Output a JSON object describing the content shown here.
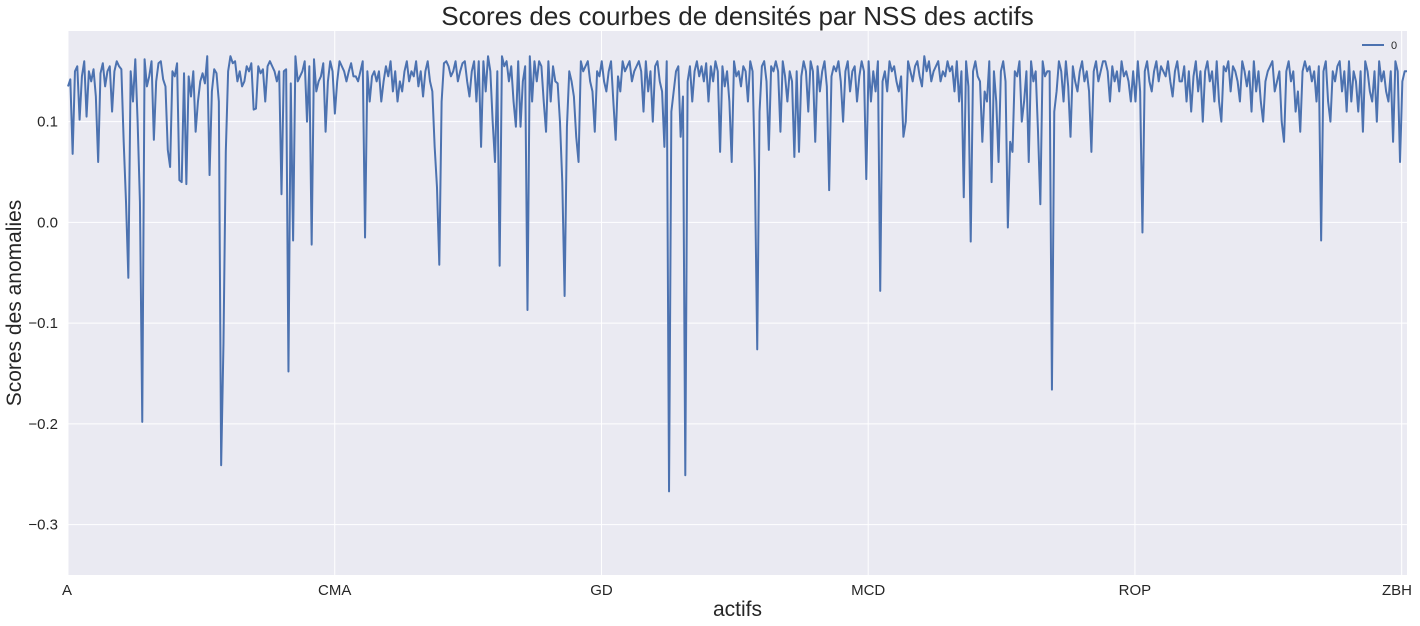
{
  "chart_data": {
    "type": "line",
    "title": "Scores des courbes de densités par NSS des actifs",
    "xlabel": "actifs",
    "ylabel": "Scores des anomalies",
    "x_tick_labels": [
      "A",
      "CMA",
      "GD",
      "MCD",
      "ROP",
      "ZBH"
    ],
    "x_tick_index": [
      0,
      100,
      200,
      300,
      400,
      500
    ],
    "xlim": [
      0,
      502
    ],
    "ylim": [
      -0.35,
      0.19
    ],
    "y_ticks": [
      -0.3,
      -0.2,
      -0.1,
      0.0,
      0.1
    ],
    "y_tick_labels": [
      "−0.3",
      "−0.2",
      "−0.1",
      "0.0",
      "0.1"
    ],
    "grid": true,
    "legend_position": "top-right",
    "colors": {
      "background": "#eaeaf2",
      "grid": "#ffffff",
      "line": "#4c72b0"
    },
    "series": [
      {
        "name": "0",
        "values": [
          0.135,
          0.142,
          0.068,
          0.15,
          0.155,
          0.102,
          0.145,
          0.16,
          0.105,
          0.15,
          0.14,
          0.152,
          0.125,
          0.06,
          0.148,
          0.158,
          0.135,
          0.15,
          0.155,
          0.11,
          0.15,
          0.16,
          0.155,
          0.152,
          0.08,
          0.02,
          -0.055,
          0.15,
          0.12,
          0.162,
          0.1,
          0.02,
          -0.198,
          0.162,
          0.135,
          0.145,
          0.16,
          0.082,
          0.14,
          0.158,
          0.16,
          0.142,
          0.135,
          0.072,
          0.055,
          0.15,
          0.145,
          0.158,
          0.042,
          0.04,
          0.148,
          0.038,
          0.145,
          0.125,
          0.15,
          0.09,
          0.12,
          0.14,
          0.148,
          0.138,
          0.165,
          0.047,
          0.13,
          0.152,
          0.148,
          0.12,
          -0.241,
          -0.12,
          0.07,
          0.15,
          0.165,
          0.158,
          0.16,
          0.14,
          0.15,
          0.135,
          0.14,
          0.155,
          0.15,
          0.158,
          0.112,
          0.113,
          0.155,
          0.148,
          0.152,
          0.12,
          0.155,
          0.16,
          0.155,
          0.15,
          0.14,
          0.15,
          0.028,
          0.15,
          0.152,
          -0.148,
          0.138,
          -0.018,
          0.165,
          0.14,
          0.145,
          0.15,
          0.16,
          0.1,
          0.155,
          -0.022,
          0.162,
          0.13,
          0.14,
          0.145,
          0.158,
          0.09,
          0.14,
          0.16,
          0.15,
          0.108,
          0.14,
          0.16,
          0.155,
          0.15,
          0.14,
          0.15,
          0.158,
          0.145,
          0.145,
          0.14,
          0.15,
          0.16,
          -0.015,
          0.15,
          0.12,
          0.145,
          0.15,
          0.14,
          0.15,
          0.12,
          0.14,
          0.155,
          0.145,
          0.16,
          0.13,
          0.15,
          0.12,
          0.14,
          0.13,
          0.15,
          0.16,
          0.14,
          0.15,
          0.145,
          0.16,
          0.135,
          0.15,
          0.125,
          0.15,
          0.16,
          0.14,
          0.13,
          0.075,
          0.035,
          -0.042,
          0.12,
          0.158,
          0.16,
          0.155,
          0.145,
          0.15,
          0.16,
          0.14,
          0.15,
          0.158,
          0.16,
          0.14,
          0.125,
          0.15,
          0.16,
          0.12,
          0.16,
          0.075,
          0.16,
          0.13,
          0.165,
          0.15,
          0.1,
          0.06,
          0.15,
          -0.043,
          0.165,
          0.155,
          0.16,
          0.14,
          0.155,
          0.12,
          0.095,
          0.16,
          0.095,
          0.14,
          0.155,
          -0.087,
          0.165,
          0.12,
          0.16,
          0.14,
          0.16,
          0.155,
          0.12,
          0.09,
          0.16,
          0.12,
          0.155,
          0.14,
          0.138,
          0.1,
          0.04,
          -0.073,
          0.095,
          0.15,
          0.14,
          0.125,
          0.085,
          0.06,
          0.16,
          0.15,
          0.155,
          0.16,
          0.14,
          0.13,
          0.09,
          0.15,
          0.145,
          0.16,
          0.14,
          0.13,
          0.15,
          0.16,
          0.12,
          0.082,
          0.145,
          0.13,
          0.16,
          0.15,
          0.155,
          0.16,
          0.14,
          0.15,
          0.155,
          0.16,
          0.15,
          0.11,
          0.16,
          0.13,
          0.15,
          0.1,
          0.155,
          0.16,
          0.14,
          0.13,
          0.075,
          0.16,
          -0.267,
          0.11,
          0.13,
          0.15,
          0.155,
          0.085,
          0.125,
          -0.251,
          0.14,
          0.155,
          0.12,
          0.15,
          0.16,
          0.145,
          0.155,
          0.14,
          0.158,
          0.12,
          0.155,
          0.14,
          0.16,
          0.15,
          0.07,
          0.155,
          0.135,
          0.15,
          0.12,
          0.06,
          0.16,
          0.145,
          0.15,
          0.135,
          0.155,
          0.15,
          0.12,
          0.16,
          0.15,
          0.05,
          -0.126,
          0.11,
          0.155,
          0.16,
          0.14,
          0.072,
          0.155,
          0.15,
          0.16,
          0.15,
          0.09,
          0.16,
          0.145,
          0.12,
          0.15,
          0.14,
          0.065,
          0.15,
          0.07,
          0.145,
          0.16,
          0.15,
          0.11,
          0.16,
          0.15,
          0.08,
          0.155,
          0.13,
          0.15,
          0.16,
          0.135,
          0.032,
          0.145,
          0.155,
          0.15,
          0.16,
          0.14,
          0.1,
          0.15,
          0.16,
          0.13,
          0.15,
          0.155,
          0.12,
          0.145,
          0.16,
          0.15,
          0.043,
          0.16,
          0.12,
          0.15,
          0.13,
          0.16,
          -0.068,
          0.14,
          0.15,
          0.13,
          0.16,
          0.15,
          0.155,
          0.14,
          0.13,
          0.145,
          0.085,
          0.1,
          0.16,
          0.15,
          0.14,
          0.155,
          0.16,
          0.145,
          0.135,
          0.165,
          0.15,
          0.16,
          0.14,
          0.15,
          0.155,
          0.16,
          0.14,
          0.15,
          0.145,
          0.16,
          0.15,
          0.155,
          0.13,
          0.16,
          0.12,
          0.15,
          0.025,
          0.16,
          0.135,
          -0.019,
          0.15,
          0.16,
          0.145,
          0.14,
          0.08,
          0.13,
          0.12,
          0.16,
          0.04,
          0.15,
          0.12,
          0.06,
          0.15,
          0.16,
          0.14,
          -0.005,
          0.08,
          0.07,
          0.15,
          0.145,
          0.16,
          0.1,
          0.12,
          0.15,
          0.06,
          0.16,
          0.14,
          0.15,
          0.09,
          0.018,
          0.16,
          0.145,
          0.15,
          0.15,
          -0.166,
          0.11,
          0.13,
          0.16,
          0.15,
          0.12,
          0.16,
          0.135,
          0.085,
          0.155,
          0.14,
          0.13,
          0.15,
          0.16,
          0.14,
          0.15,
          0.13,
          0.07,
          0.15,
          0.16,
          0.14,
          0.15,
          0.16,
          0.16,
          0.15,
          0.12,
          0.155,
          0.14,
          0.15,
          0.13,
          0.16,
          0.145,
          0.15,
          0.14,
          0.12,
          0.15,
          0.12,
          0.16,
          0.13,
          -0.01,
          0.15,
          0.16,
          0.14,
          0.13,
          0.15,
          0.16,
          0.14,
          0.155,
          0.15,
          0.145,
          0.16,
          0.14,
          0.125,
          0.15,
          0.16,
          0.14,
          0.14,
          0.155,
          0.12,
          0.15,
          0.11,
          0.145,
          0.16,
          0.13,
          0.15,
          0.1,
          0.15,
          0.16,
          0.14,
          0.15,
          0.12,
          0.16,
          0.12,
          0.1,
          0.155,
          0.15,
          0.16,
          0.13,
          0.155,
          0.15,
          0.14,
          0.12,
          0.16,
          0.15,
          0.135,
          0.15,
          0.11,
          0.16,
          0.13,
          0.15,
          0.12,
          0.1,
          0.14,
          0.15,
          0.155,
          0.16,
          0.13,
          0.14,
          0.15,
          0.1,
          0.08,
          0.15,
          0.16,
          0.14,
          0.15,
          0.11,
          0.13,
          0.09,
          0.15,
          0.16,
          0.15,
          0.155,
          0.14,
          0.15,
          0.12,
          0.155,
          -0.018,
          0.15,
          0.16,
          0.12,
          0.1,
          0.15,
          0.14,
          0.155,
          0.16,
          0.13,
          0.15,
          0.11,
          0.16,
          0.12,
          0.15,
          0.14,
          0.11,
          0.15,
          0.09,
          0.16,
          0.15,
          0.13,
          0.12,
          0.15,
          0.1,
          0.16,
          0.14,
          0.15,
          0.13,
          0.12,
          0.15,
          0.08,
          0.16,
          0.15,
          0.06,
          0.14,
          0.15,
          0.15
        ]
      }
    ]
  }
}
